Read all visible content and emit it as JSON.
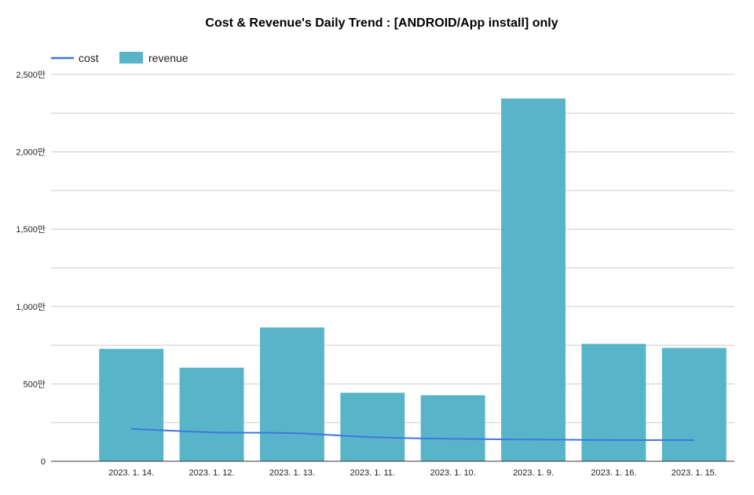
{
  "chart_data": {
    "type": "bar",
    "title": "Cost & Revenue's Daily Trend : [ANDROID/App install] only",
    "xlabel": "",
    "ylabel": "",
    "legend_position": "top-left",
    "grid": true,
    "ylim": [
      0,
      25000000
    ],
    "yticks": [
      {
        "value": 0,
        "label": "0"
      },
      {
        "value": 5000000,
        "label": "500만"
      },
      {
        "value": 10000000,
        "label": "1,000만"
      },
      {
        "value": 15000000,
        "label": "1,500만"
      },
      {
        "value": 20000000,
        "label": "2,000만"
      },
      {
        "value": 25000000,
        "label": "2,500만"
      }
    ],
    "categories": [
      "2023. 1. 14.",
      "2023. 1. 12.",
      "2023. 1. 13.",
      "2023. 1. 11.",
      "2023. 1. 10.",
      "2023. 1. 9.",
      "2023. 1. 16.",
      "2023. 1. 15."
    ],
    "series": [
      {
        "name": "cost",
        "type": "line",
        "color": "#3d78e0",
        "values": [
          2100000,
          1870000,
          1820000,
          1560000,
          1450000,
          1410000,
          1370000,
          1370000
        ]
      },
      {
        "name": "revenue",
        "type": "bar",
        "color": "#58b4c9",
        "values": [
          7270000,
          6050000,
          8650000,
          4430000,
          4270000,
          23450000,
          7590000,
          7330000
        ]
      }
    ]
  }
}
